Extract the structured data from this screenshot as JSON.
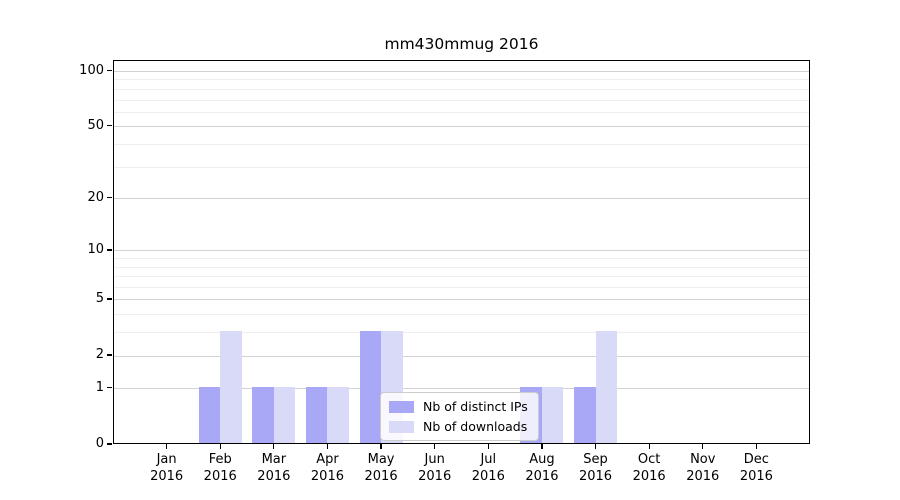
{
  "title": "mm430mmug 2016",
  "chart_data": {
    "type": "bar",
    "title": "mm430mmug 2016",
    "categories": [
      "Jan",
      "Feb",
      "Mar",
      "Apr",
      "May",
      "Jun",
      "Jul",
      "Aug",
      "Sep",
      "Oct",
      "Nov",
      "Dec"
    ],
    "year_label": "2016",
    "series": [
      {
        "name": "Nb of distinct IPs",
        "color": "#a8a8f6",
        "values": [
          0,
          1,
          1,
          1,
          3,
          0,
          0,
          1,
          1,
          0,
          0,
          0
        ]
      },
      {
        "name": "Nb of downloads",
        "color": "#d9d9f8",
        "values": [
          0,
          3,
          1,
          1,
          3,
          0,
          0,
          1,
          3,
          0,
          0,
          0
        ]
      }
    ],
    "y_scale": "log10(1+v)",
    "ylim": [
      0,
      113
    ],
    "yticks": [
      0,
      1,
      2,
      5,
      10,
      20,
      50,
      100
    ],
    "yticks_minor": [
      3,
      4,
      6,
      7,
      8,
      9,
      30,
      40,
      60,
      70,
      80,
      90
    ],
    "grid": "both",
    "legend_position": "lower center-right",
    "bar_width_fraction": 0.4
  },
  "colors": {
    "axis": "#000000",
    "grid_major": "#d2d2d2",
    "grid_minor": "#eeeeee",
    "background": "#ffffff"
  }
}
